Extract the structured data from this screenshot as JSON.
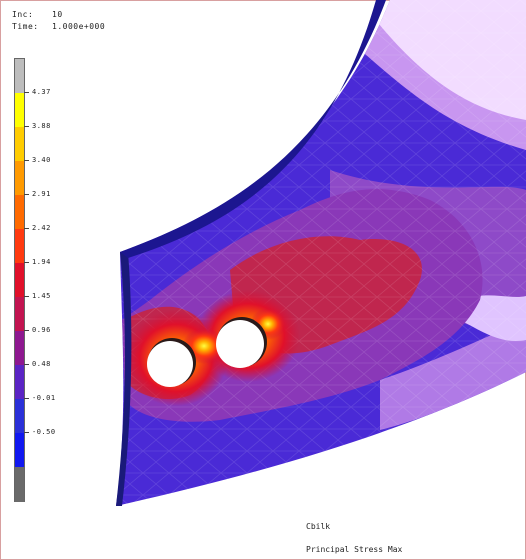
{
  "header": {
    "inc_label": "Inc:",
    "inc_value": "10",
    "time_label": "Time:",
    "time_value": "1.000e+000"
  },
  "legend": {
    "ticks": [
      "4.37",
      "3.88",
      "3.40",
      "2.91",
      "2.42",
      "1.94",
      "1.45",
      "0.96",
      "0.48",
      "-0.01",
      "-0.50"
    ],
    "colors": [
      "#bdbdbd",
      "#ffff00",
      "#ffcc00",
      "#ff9a00",
      "#ff6a00",
      "#ff3a10",
      "#e0102a",
      "#c21450",
      "#8e1890",
      "#5a24c4",
      "#2a30d8",
      "#1018f0",
      "#6a6a6a"
    ]
  },
  "footer": {
    "job": "Cbilk",
    "quantity": "Principal Stress Max"
  }
}
